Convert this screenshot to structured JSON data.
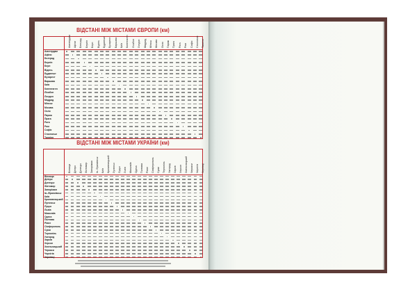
{
  "europe": {
    "title": "ВІДСТАНІ МІЖ МІСТАМИ ЄВРОПИ (км)",
    "cities": [
      "Амстердам",
      "Афіни",
      "Белград",
      "Берлін",
      "Берн",
      "Відень",
      "Будапешт",
      "Бухарест",
      "Варшава",
      "Київ",
      "Копенгаген",
      "Лісабон",
      "Лондон",
      "Мадрид",
      "Мінськ",
      "Москва",
      "Осло",
      "Париж",
      "Прага",
      "Рига",
      "Рим",
      "Софія",
      "Стокгольм",
      "Таллінн"
    ]
  },
  "ukraine": {
    "title": "ВІДСТАНІ МІЖ МІСТАМИ УКРАЇНИ (км)",
    "cities": [
      "Вінниця",
      "Дніпро",
      "Донецьк",
      "Житомир",
      "Запоріжжя",
      "Ів.-Франківськ",
      "Київ",
      "Кропивницький",
      "Луганськ",
      "Луцьк",
      "Львів",
      "Миколаїв",
      "Одеса",
      "Полтава",
      "Рівне",
      "Сімферополь",
      "Суми",
      "Тернопіль",
      "Ужгород",
      "Харків",
      "Херсон",
      "Хмельницький",
      "Черкаси",
      "Чернігів",
      "Чернівці"
    ]
  },
  "colors": {
    "cover": "#5d3b37",
    "accent": "#c0262c",
    "page": "#f8f9f4"
  }
}
